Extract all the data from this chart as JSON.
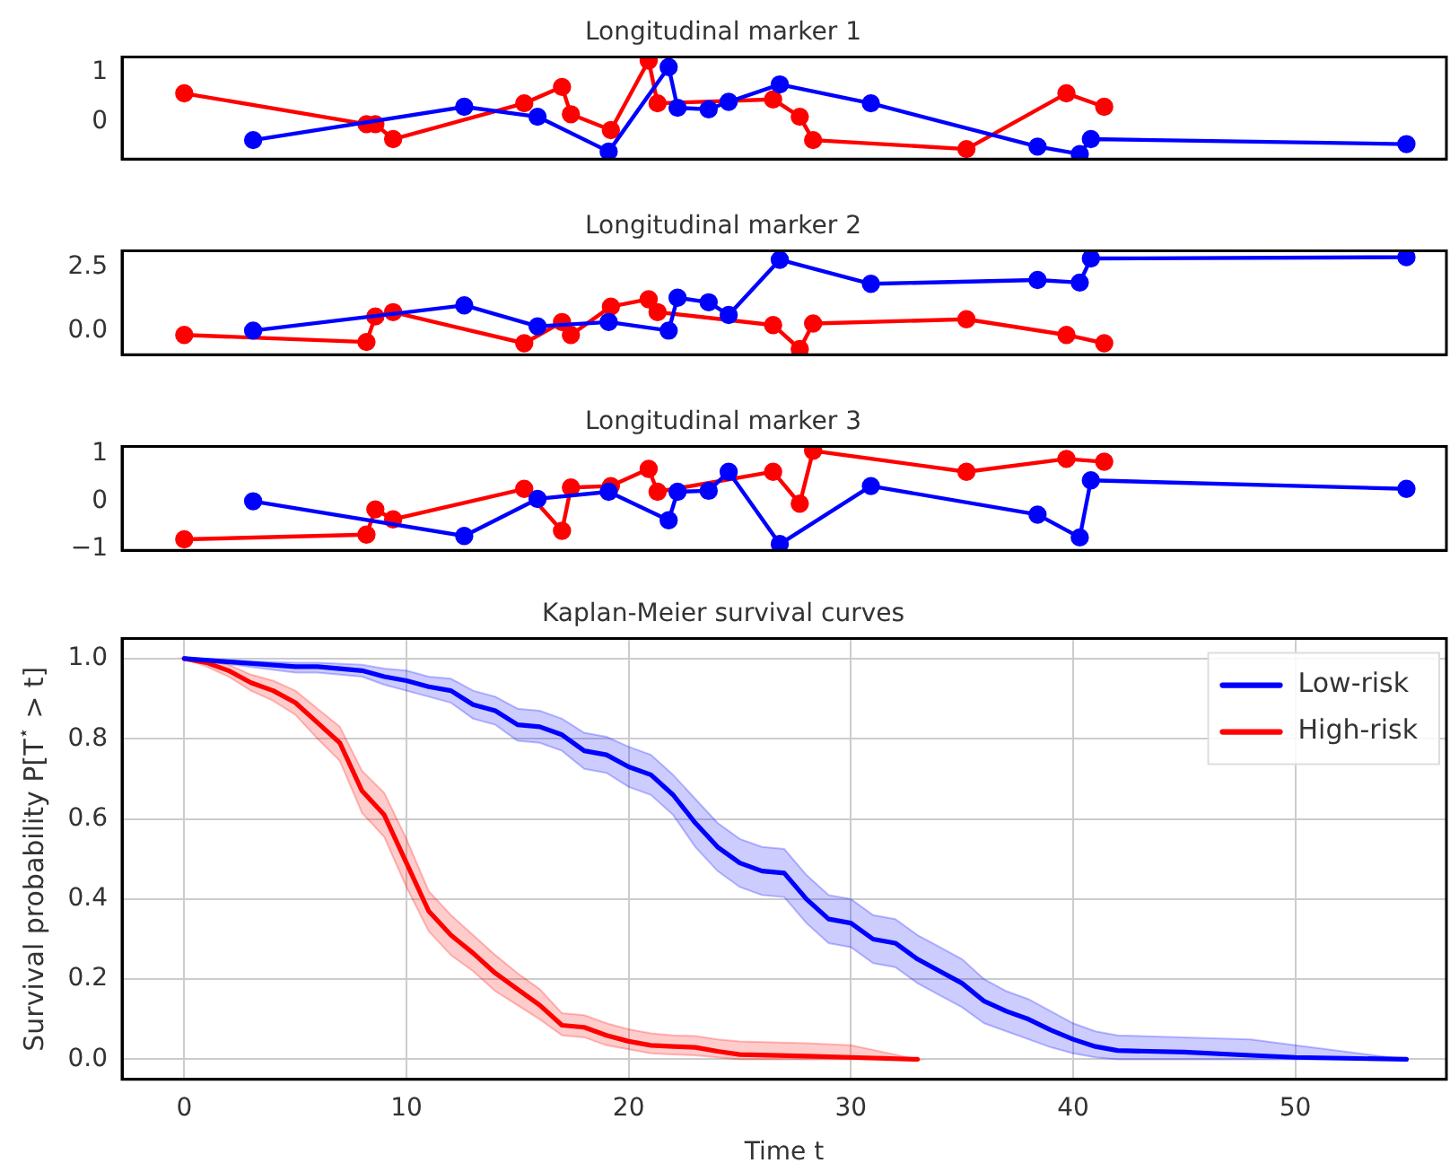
{
  "chart_data": [
    {
      "type": "line",
      "title": "Longitudinal marker 1",
      "xlim": [
        -2.8,
        56.8
      ],
      "ylim": [
        -0.75,
        1.3
      ],
      "yticks": [
        0,
        1
      ],
      "tick_labels": "y",
      "marker": "circle",
      "grid": false,
      "series": [
        {
          "color": "#0000ff",
          "x": [
            3.1,
            12.6,
            15.9,
            19.1,
            21.8,
            22.2,
            23.6,
            24.5,
            26.8,
            30.9,
            38.4,
            40.3,
            40.8,
            55
          ],
          "values": [
            -0.37,
            0.3,
            0.1,
            -0.6,
            1.1,
            0.28,
            0.25,
            0.4,
            0.75,
            0.37,
            -0.5,
            -0.65,
            -0.35,
            -0.45
          ]
        },
        {
          "color": "#ff0000",
          "x": [
            0,
            8.2,
            8.6,
            9.4,
            15.3,
            17,
            17.4,
            19.2,
            20.9,
            21.3,
            26.5,
            27.7,
            28.3,
            35.2,
            39.7,
            41.4
          ],
          "values": [
            0.57,
            -0.05,
            -0.05,
            -0.35,
            0.37,
            0.7,
            0.15,
            -0.17,
            1.23,
            0.37,
            0.45,
            0.1,
            -0.37,
            -0.55,
            0.57,
            0.3
          ]
        }
      ]
    },
    {
      "type": "line",
      "title": "Longitudinal marker 2",
      "xlim": [
        -2.8,
        56.8
      ],
      "ylim": [
        -0.95,
        3.15
      ],
      "yticks": [
        {
          "value": 0,
          "label": "0.0"
        },
        2.5
      ],
      "tick_labels": "y",
      "marker": "circle",
      "grid": false,
      "series": [
        {
          "color": "#0000ff",
          "x": [
            3.1,
            12.6,
            15.9,
            19.1,
            21.8,
            22.2,
            23.6,
            24.5,
            26.8,
            30.9,
            38.4,
            40.3,
            40.8,
            55
          ],
          "values": [
            0,
            1.0,
            0.17,
            0.34,
            0,
            1.3,
            1.12,
            0.62,
            2.8,
            1.85,
            2.0,
            1.9,
            2.85,
            2.9
          ]
        },
        {
          "color": "#ff0000",
          "x": [
            0,
            8.2,
            8.6,
            9.4,
            15.3,
            17,
            17.4,
            19.2,
            20.9,
            21.3,
            26.5,
            27.7,
            28.3,
            35.2,
            39.7,
            41.4
          ],
          "values": [
            -0.17,
            -0.45,
            0.56,
            0.73,
            -0.5,
            0.34,
            -0.17,
            0.95,
            1.24,
            0.73,
            0.22,
            -0.73,
            0.28,
            0.45,
            -0.17,
            -0.5
          ]
        }
      ]
    },
    {
      "type": "line",
      "title": "Longitudinal marker 3",
      "xlim": [
        -2.8,
        56.8
      ],
      "ylim": [
        -1.03,
        1.15
      ],
      "yticks": [
        {
          "value": -1,
          "label": "−1"
        },
        0,
        1
      ],
      "tick_labels": "y",
      "marker": "circle",
      "grid": false,
      "series": [
        {
          "color": "#0000ff",
          "x": [
            3.1,
            12.6,
            15.9,
            19.1,
            21.8,
            22.2,
            23.6,
            24.5,
            26.8,
            30.9,
            38.4,
            40.3,
            40.8,
            55
          ],
          "values": [
            0,
            -0.73,
            0.05,
            0.2,
            -0.4,
            0.2,
            0.22,
            0.62,
            -0.9,
            0.32,
            -0.28,
            -0.76,
            0.44,
            0.26
          ]
        },
        {
          "color": "#ff0000",
          "x": [
            0,
            8.2,
            8.6,
            9.4,
            15.3,
            17,
            17.4,
            19.2,
            20.9,
            21.3,
            26.5,
            27.7,
            28.3,
            35.2,
            39.7,
            41.4
          ],
          "values": [
            -0.8,
            -0.7,
            -0.17,
            -0.38,
            0.26,
            -0.62,
            0.29,
            0.32,
            0.68,
            0.2,
            0.62,
            -0.05,
            1.06,
            0.62,
            0.89,
            0.83
          ]
        }
      ]
    },
    {
      "type": "line",
      "title": "Kaplan-Meier survival curves",
      "xlabel": "Time t",
      "ylabel": "Survival probability P[T$^{⋆}$ > t]",
      "xlim": [
        -2.8,
        56.8
      ],
      "ylim": [
        -0.05,
        1.05
      ],
      "xticks": [
        0,
        10,
        20,
        30,
        40,
        50
      ],
      "yticks": [
        {
          "value": 0,
          "label": "0.0"
        },
        {
          "value": 0.2,
          "label": "0.2"
        },
        {
          "value": 0.4,
          "label": "0.4"
        },
        {
          "value": 0.6,
          "label": "0.6"
        },
        {
          "value": 0.8,
          "label": "0.8"
        },
        {
          "value": 1,
          "label": "1.0"
        }
      ],
      "grid": true,
      "legend": "top right",
      "marker": "none",
      "series": [
        {
          "name": "Low-risk",
          "color": "#0000ff",
          "x": [
            0,
            5,
            6,
            8,
            9,
            10,
            11,
            12,
            13,
            14,
            15,
            16,
            17,
            18,
            19,
            20,
            21,
            22,
            23,
            24,
            25,
            26,
            27,
            28,
            29,
            30,
            31,
            32,
            33,
            34,
            35,
            36,
            37,
            38,
            39,
            40,
            41,
            42,
            45,
            48,
            50,
            55
          ],
          "values": [
            1.0,
            0.98,
            0.98,
            0.97,
            0.955,
            0.945,
            0.93,
            0.92,
            0.885,
            0.87,
            0.835,
            0.83,
            0.81,
            0.77,
            0.76,
            0.73,
            0.71,
            0.66,
            0.59,
            0.53,
            0.49,
            0.47,
            0.465,
            0.4,
            0.35,
            0.34,
            0.3,
            0.29,
            0.25,
            0.22,
            0.19,
            0.145,
            0.12,
            0.1,
            0.073,
            0.05,
            0.032,
            0.022,
            0.018,
            0.01,
            0.005,
            0.0
          ],
          "upper": [
            1.0,
            0.99,
            0.99,
            0.985,
            0.975,
            0.97,
            0.955,
            0.95,
            0.92,
            0.905,
            0.875,
            0.87,
            0.85,
            0.815,
            0.805,
            0.78,
            0.76,
            0.71,
            0.65,
            0.59,
            0.55,
            0.53,
            0.525,
            0.46,
            0.41,
            0.4,
            0.36,
            0.35,
            0.31,
            0.28,
            0.25,
            0.2,
            0.17,
            0.15,
            0.12,
            0.09,
            0.07,
            0.06,
            0.055,
            0.05,
            0.035,
            0.0
          ],
          "lower": [
            1.0,
            0.965,
            0.965,
            0.955,
            0.935,
            0.92,
            0.905,
            0.89,
            0.85,
            0.835,
            0.795,
            0.79,
            0.77,
            0.725,
            0.715,
            0.68,
            0.66,
            0.61,
            0.53,
            0.47,
            0.43,
            0.41,
            0.405,
            0.34,
            0.29,
            0.28,
            0.24,
            0.23,
            0.19,
            0.16,
            0.13,
            0.09,
            0.07,
            0.05,
            0.03,
            0.015,
            0.005,
            0.0,
            0.0,
            0.0,
            0.0,
            0.0
          ]
        },
        {
          "name": "High-risk",
          "color": "#ff0000",
          "x": [
            0,
            1,
            2,
            3,
            4,
            5,
            6,
            7,
            8,
            9,
            10,
            11,
            12,
            13,
            14,
            15,
            16,
            17,
            18,
            19,
            20,
            21,
            22,
            23,
            24,
            25,
            28,
            30,
            33
          ],
          "values": [
            1.0,
            0.99,
            0.97,
            0.94,
            0.92,
            0.89,
            0.84,
            0.79,
            0.67,
            0.61,
            0.49,
            0.37,
            0.31,
            0.265,
            0.215,
            0.175,
            0.135,
            0.085,
            0.08,
            0.06,
            0.045,
            0.035,
            0.032,
            0.03,
            0.02,
            0.012,
            0.008,
            0.005,
            0.0
          ],
          "upper": [
            1.0,
            0.995,
            0.985,
            0.96,
            0.945,
            0.92,
            0.875,
            0.83,
            0.72,
            0.665,
            0.55,
            0.42,
            0.36,
            0.31,
            0.26,
            0.215,
            0.175,
            0.115,
            0.11,
            0.09,
            0.075,
            0.065,
            0.06,
            0.058,
            0.05,
            0.045,
            0.04,
            0.035,
            0.0
          ],
          "lower": [
            1.0,
            0.98,
            0.955,
            0.92,
            0.895,
            0.86,
            0.8,
            0.745,
            0.615,
            0.555,
            0.43,
            0.32,
            0.26,
            0.22,
            0.17,
            0.135,
            0.1,
            0.06,
            0.055,
            0.035,
            0.025,
            0.015,
            0.012,
            0.01,
            0.005,
            0.0,
            0.0,
            0.0,
            0.0
          ]
        }
      ]
    }
  ]
}
